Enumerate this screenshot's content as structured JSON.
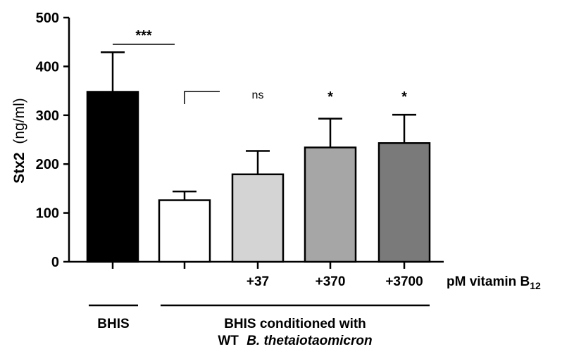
{
  "chart_data": {
    "type": "bar",
    "categories": [
      "",
      "",
      "+37",
      "+370",
      "+3700"
    ],
    "values": [
      348,
      126,
      179,
      234,
      243
    ],
    "errors": [
      81,
      18,
      48,
      59,
      58
    ],
    "colors": [
      "#000000",
      "#ffffff",
      "#d4d4d4",
      "#a6a6a6",
      "#7a7a7a"
    ],
    "ylabel_bold": "Stx2",
    "ylabel_unit": "(ng/ml)",
    "ylim": [
      0,
      500
    ],
    "yticks": [
      "0",
      "100",
      "200",
      "300",
      "400",
      "500"
    ],
    "xlabel_suffix": "pM vitamin B",
    "xlabel_subscript": "12",
    "significance": {
      "comparison": "***",
      "bars": [
        "",
        "",
        "ns",
        "*",
        "*"
      ]
    },
    "groups": {
      "first": "BHIS",
      "second_line1": "BHIS conditioned with",
      "second_line2_prefix": "WT",
      "second_line2_species": "B. thetaiotaomicron"
    },
    "grid": false
  }
}
